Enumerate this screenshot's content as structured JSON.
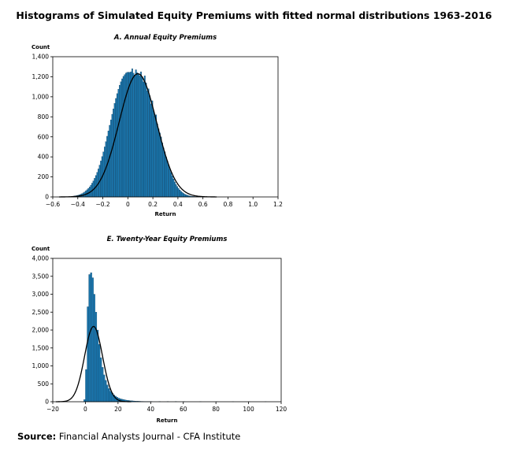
{
  "title": "Histograms of Simulated Equity Premiums with fitted normal distributions 1963-2016",
  "source": {
    "label": "Source:",
    "text": " Financial Analysts Journal - CFA Institute"
  },
  "colors": {
    "bar": "#1a78b0",
    "bar_edge": "#0b2f4a",
    "fit": "#000000"
  },
  "chart_data": [
    {
      "type": "bar",
      "title": "A. Annual Equity Premiums",
      "xlabel": "Return",
      "ylabel": "Count",
      "xlim": [
        -0.6,
        1.2
      ],
      "ylim": [
        0,
        1400
      ],
      "x_ticks": [
        "−0.6",
        "−0.4",
        "−0.2",
        "0",
        "0.2",
        "0.4",
        "0.6",
        "0.8",
        "1.0",
        "1.2"
      ],
      "y_ticks": [
        "0",
        "200",
        "400",
        "600",
        "800",
        "1,000",
        "1,200",
        "1,400"
      ],
      "bin_width": 0.01,
      "x": [
        -0.44,
        -0.43,
        -0.42,
        -0.41,
        -0.4,
        -0.39,
        -0.38,
        -0.37,
        -0.36,
        -0.35,
        -0.34,
        -0.33,
        -0.32,
        -0.31,
        -0.3,
        -0.29,
        -0.28,
        -0.27,
        -0.26,
        -0.25,
        -0.24,
        -0.23,
        -0.22,
        -0.21,
        -0.2,
        -0.19,
        -0.18,
        -0.17,
        -0.16,
        -0.15,
        -0.14,
        -0.13,
        -0.12,
        -0.11,
        -0.1,
        -0.09,
        -0.08,
        -0.07,
        -0.06,
        -0.05,
        -0.04,
        -0.03,
        -0.02,
        -0.01,
        0.0,
        0.01,
        0.02,
        0.03,
        0.04,
        0.05,
        0.06,
        0.07,
        0.08,
        0.09,
        0.1,
        0.11,
        0.12,
        0.13,
        0.14,
        0.15,
        0.16,
        0.17,
        0.18,
        0.19,
        0.2,
        0.21,
        0.22,
        0.23,
        0.24,
        0.25,
        0.26,
        0.27,
        0.28,
        0.29,
        0.3,
        0.31,
        0.32,
        0.33,
        0.34,
        0.35,
        0.36,
        0.37,
        0.38,
        0.39,
        0.4,
        0.41,
        0.42,
        0.43,
        0.44,
        0.45,
        0.46,
        0.47,
        0.48,
        0.49,
        0.5,
        0.51,
        0.52,
        0.53,
        0.54,
        0.55,
        0.56,
        0.57,
        0.58,
        0.59,
        0.6,
        0.61,
        0.62,
        0.63,
        0.64,
        0.65
      ],
      "values": [
        8,
        10,
        12,
        15,
        18,
        22,
        28,
        34,
        42,
        50,
        60,
        72,
        86,
        100,
        118,
        138,
        160,
        186,
        215,
        246,
        280,
        318,
        360,
        404,
        450,
        500,
        552,
        606,
        660,
        716,
        770,
        826,
        880,
        934,
        984,
        1032,
        1076,
        1116,
        1150,
        1180,
        1204,
        1222,
        1236,
        1244,
        1246,
        1244,
        1250,
        1280,
        1236,
        1218,
        1270,
        1240,
        1230,
        1210,
        1250,
        1200,
        1150,
        1210,
        1140,
        1060,
        1080,
        1010,
        930,
        960,
        860,
        810,
        820,
        730,
        680,
        640,
        600,
        540,
        490,
        450,
        400,
        360,
        320,
        280,
        245,
        210,
        180,
        150,
        125,
        105,
        86,
        70,
        56,
        45,
        36,
        28,
        22,
        17,
        13,
        10,
        8,
        6,
        5,
        4,
        3,
        3,
        2,
        2,
        2,
        1,
        1,
        1,
        1,
        1,
        1,
        1
      ],
      "fit": {
        "type": "normal",
        "mean": 0.08,
        "sd": 0.15,
        "peak": 1230
      }
    },
    {
      "type": "bar",
      "title": "E. Twenty-Year Equity Premiums",
      "xlabel": "Return",
      "ylabel": "Count",
      "xlim": [
        -20,
        120
      ],
      "ylim": [
        0,
        4000
      ],
      "x_ticks": [
        "−20",
        "0",
        "20",
        "40",
        "60",
        "80",
        "100",
        "120"
      ],
      "y_ticks": [
        "0",
        "500",
        "1,000",
        "1,500",
        "2,000",
        "2,500",
        "3,000",
        "3,500",
        "4,000"
      ],
      "bin_width": 1,
      "x": [
        -1,
        0,
        1,
        2,
        3,
        4,
        5,
        6,
        7,
        8,
        9,
        10,
        11,
        12,
        13,
        14,
        15,
        16,
        17,
        18,
        19,
        20,
        21,
        22,
        23,
        24,
        25,
        26,
        27,
        28,
        29,
        30,
        31,
        32,
        33,
        34,
        35,
        36,
        37,
        38,
        39,
        40,
        45,
        50,
        55,
        60,
        70,
        80,
        90,
        100,
        110
      ],
      "values": [
        60,
        900,
        2650,
        3550,
        3600,
        3460,
        3000,
        2500,
        2000,
        1600,
        1230,
        960,
        750,
        600,
        470,
        370,
        290,
        240,
        190,
        155,
        125,
        100,
        85,
        70,
        60,
        50,
        42,
        36,
        30,
        26,
        22,
        19,
        16,
        14,
        12,
        10,
        9,
        8,
        7,
        6,
        5,
        5,
        4,
        3,
        3,
        2,
        2,
        1,
        1,
        1,
        1
      ],
      "fit": {
        "type": "normal",
        "mean": 5,
        "sd": 5.5,
        "peak": 2100
      }
    }
  ]
}
